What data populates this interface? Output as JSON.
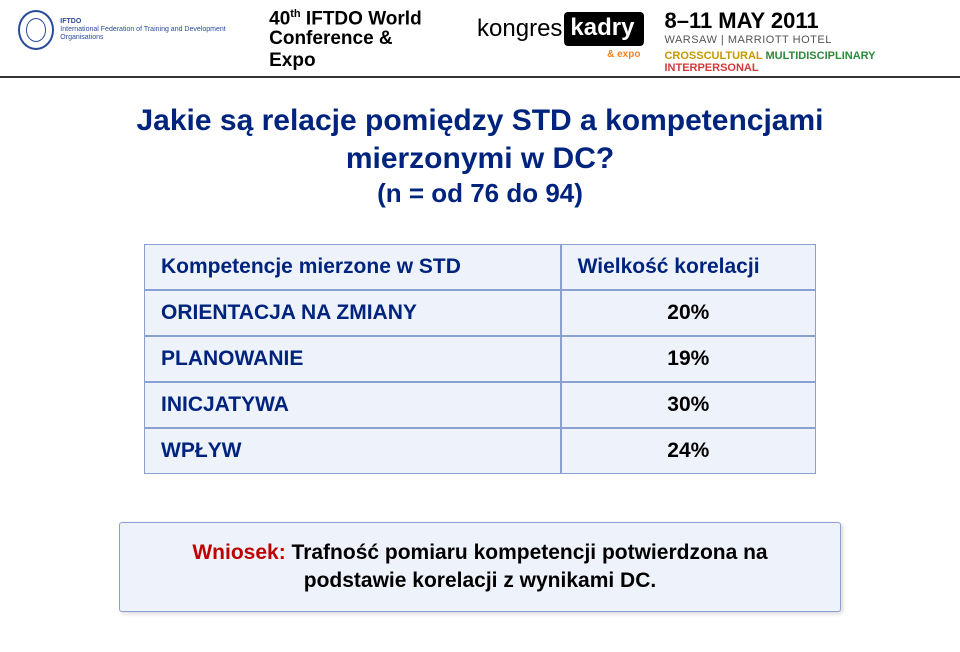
{
  "header": {
    "iftdo_caption": "IFTDO",
    "iftdo_sub": "International Federation of\nTraining and Development\nOrganisations",
    "conference_line1_prefix": "40",
    "conference_line1_sup": "th",
    "conference_line1_rest": " IFTDO World",
    "conference_line2": "Conference & Expo",
    "kongres_prefix": "kongres",
    "kongres_badge": "kadry",
    "kongres_sub": "& expo",
    "date_main": "8–11 MAY 2011",
    "date_sub": "WARSAW | MARRIOTT HOTEL",
    "tag_c1": "CROSSCULTURAL ",
    "tag_c2": "MULTIDISCIPLINARY ",
    "tag_c3": "INTERPERSONAL"
  },
  "title_line1": "Jakie są relacje pomiędzy STD a kompetencjami",
  "title_line2": "mierzonymi w DC?",
  "subtitle": "(n = od 76 do 94)",
  "table": {
    "col1_header": "Kompetencje mierzone w STD",
    "col2_header": "Wielkość korelacji",
    "rows": [
      {
        "label": "ORIENTACJA NA ZMIANY",
        "value": "20%"
      },
      {
        "label": "PLANOWANIE",
        "value": "19%"
      },
      {
        "label": "INICJATYWA",
        "value": "30%"
      },
      {
        "label": "WPŁYW",
        "value": "24%"
      }
    ],
    "border_color": "#8aa0d0",
    "header_bg": "#eef2fb",
    "cell_bg": "#eef2fb",
    "label_color": "#00247d",
    "value_color": "#000000",
    "font_size": 21
  },
  "conclusion": {
    "label": "Wniosek:",
    "text": " Trafność pomiaru kompetencji potwierdzona na podstawie korelacji z wynikami DC.",
    "label_color": "#c00000",
    "bg": "#eef2fb",
    "border": "#8aa0d0"
  }
}
